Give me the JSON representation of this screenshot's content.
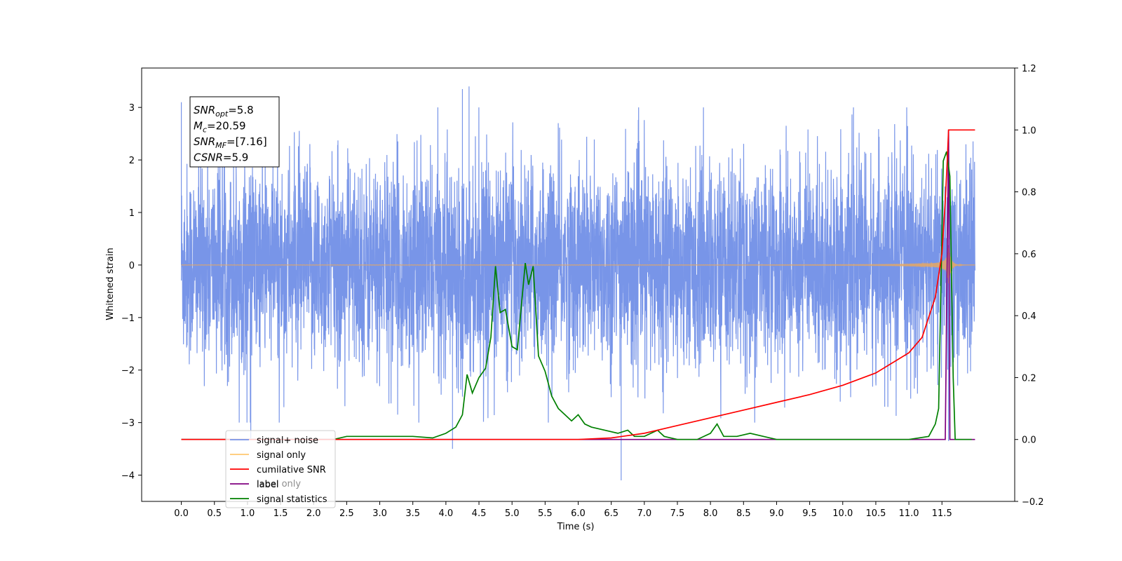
{
  "chart_data": {
    "type": "line",
    "xlabel": "Time (s)",
    "ylabel": "Whitened strain",
    "xlim": [
      -0.6,
      12.6
    ],
    "ylim": [
      -4.5,
      3.75
    ],
    "ylim_right": [
      -0.2,
      1.2
    ],
    "x_ticks": [
      "0.0",
      "0.5",
      "1.0",
      "1.5",
      "2.0",
      "2.5",
      "3.0",
      "3.5",
      "4.0",
      "4.5",
      "5.0",
      "5.5",
      "6.0",
      "6.5",
      "7.0",
      "7.5",
      "8.0",
      "8.5",
      "9.0",
      "9.5",
      "10.0",
      "10.5",
      "11.0",
      "11.5"
    ],
    "y_ticks_left": [
      "3",
      "2",
      "1",
      "0",
      "−1",
      "−2",
      "−3",
      "−4"
    ],
    "y_ticks_right": [
      "1.2",
      "1.0",
      "0.8",
      "0.6",
      "0.4",
      "0.2",
      "0.0",
      "−0.2"
    ],
    "legend_position": "lower-left",
    "annotation": {
      "lines": [
        {
          "symbol": "SNR",
          "sub": "opt",
          "value": "=5.8"
        },
        {
          "symbol": "M",
          "sub": "c",
          "value": "=20.59"
        },
        {
          "symbol": "SNR",
          "sub": "MF",
          "value": "=[7.16]"
        },
        {
          "symbol": "CSNR",
          "sub": "",
          "value": "=5.9"
        }
      ]
    },
    "series": [
      {
        "name": "signal+ noise",
        "axis": "left",
        "color": "#7895e8",
        "description_values": {
          "x_start": 0.0,
          "x_end": 12.0,
          "typical_range": [
            -2.0,
            2.0
          ],
          "notable_peaks": [
            [
              0.0,
              3.1
            ],
            [
              4.35,
              3.4
            ],
            [
              4.25,
              3.35
            ],
            [
              11.6,
              -3.35
            ],
            [
              6.65,
              -4.1
            ],
            [
              4.1,
              -3.5
            ],
            [
              1.05,
              -3.3
            ]
          ]
        }
      },
      {
        "name": "signal only",
        "axis": "left",
        "color": "#e8a860",
        "description_values": {
          "chirp_start": 0.0,
          "merger_time": 11.6,
          "peak_amplitude": 0.35
        }
      },
      {
        "name": "cumilative SNR",
        "axis": "right",
        "color": "#ff0000",
        "x": [
          0,
          6.0,
          6.5,
          7.0,
          7.5,
          8.0,
          8.5,
          9.0,
          9.5,
          10.0,
          10.5,
          11.0,
          11.2,
          11.4,
          11.5,
          11.55,
          11.58,
          11.6,
          12.0
        ],
        "y": [
          0,
          0,
          0.005,
          0.02,
          0.045,
          0.07,
          0.095,
          0.12,
          0.145,
          0.175,
          0.215,
          0.28,
          0.33,
          0.46,
          0.6,
          0.77,
          0.9,
          1.0,
          1.0
        ]
      },
      {
        "name": "label",
        "axis": "right",
        "color": "#800080",
        "x": [
          0,
          11.55,
          11.6,
          11.62,
          11.65,
          12.0
        ],
        "y": [
          0,
          0,
          1.0,
          0.0,
          0.0,
          0.0
        ]
      },
      {
        "name": "signal statistics",
        "axis": "right",
        "color": "#008000",
        "x": [
          0,
          2.3,
          2.5,
          3.0,
          3.5,
          3.8,
          4.0,
          4.15,
          4.25,
          4.32,
          4.4,
          4.5,
          4.6,
          4.68,
          4.75,
          4.82,
          4.9,
          5.0,
          5.08,
          5.2,
          5.25,
          5.32,
          5.4,
          5.5,
          5.6,
          5.7,
          5.8,
          5.9,
          6.0,
          6.1,
          6.2,
          6.4,
          6.6,
          6.75,
          6.85,
          7.0,
          7.2,
          7.3,
          7.5,
          7.8,
          8.0,
          8.1,
          8.2,
          8.4,
          8.6,
          8.8,
          9.0,
          9.2,
          9.4,
          9.6,
          10.0,
          11.0,
          11.3,
          11.4,
          11.45,
          11.52,
          11.57,
          11.62,
          11.67,
          11.7,
          11.95
        ],
        "y": [
          0,
          0,
          0.01,
          0.01,
          0.01,
          0.005,
          0.02,
          0.04,
          0.08,
          0.21,
          0.15,
          0.2,
          0.23,
          0.33,
          0.56,
          0.41,
          0.42,
          0.3,
          0.29,
          0.57,
          0.5,
          0.56,
          0.27,
          0.22,
          0.14,
          0.1,
          0.08,
          0.06,
          0.08,
          0.05,
          0.04,
          0.03,
          0.02,
          0.03,
          0.01,
          0.01,
          0.03,
          0.01,
          0.0,
          0.0,
          0.02,
          0.05,
          0.01,
          0.01,
          0.02,
          0.01,
          0.0,
          0.0,
          0.0,
          0.0,
          0.0,
          0.0,
          0.01,
          0.05,
          0.1,
          0.9,
          0.93,
          0.85,
          0.2,
          0.0,
          0.0
        ]
      }
    ],
    "legend_entries": [
      {
        "label": "signal+ noise",
        "color": "#7895e8"
      },
      {
        "label": "signal only",
        "color": "#ffc870"
      },
      {
        "label": "cumilative SNR",
        "color": "#ff0000"
      },
      {
        "label": "label",
        "color": "#800080"
      },
      {
        "label": "signal statistics",
        "color": "#008000"
      }
    ],
    "legend_ghost_text": "label only"
  }
}
